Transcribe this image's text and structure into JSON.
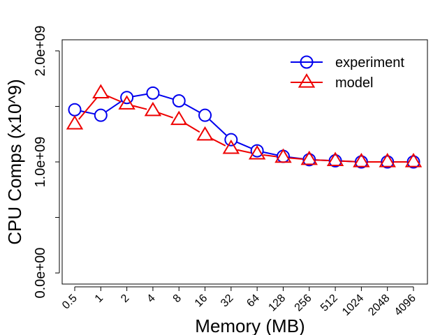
{
  "chart_data": {
    "type": "line",
    "xlabel": "Memory (MB)",
    "ylabel": "CPU Comps (x10^9)",
    "categories": [
      "0.5",
      "1",
      "2",
      "4",
      "8",
      "16",
      "32",
      "64",
      "128",
      "256",
      "512",
      "1024",
      "2048",
      "4096"
    ],
    "ylim": [
      -0.1,
      2.1
    ],
    "y_ticks": [
      0,
      0.5,
      1.0,
      1.5,
      2.0
    ],
    "y_tick_labels": [
      "0.0e+00",
      "",
      "1.0e+09",
      "",
      "2.0e+09"
    ],
    "grid": false,
    "legend_position": "top-right",
    "series": [
      {
        "name": "experiment",
        "color": "#0000ee",
        "marker": "circle",
        "values": [
          1.47,
          1.42,
          1.58,
          1.62,
          1.55,
          1.42,
          1.2,
          1.1,
          1.05,
          1.02,
          1.01,
          1.0,
          1.0,
          1.0
        ]
      },
      {
        "name": "model",
        "color": "#ee0000",
        "marker": "triangle",
        "values": [
          1.34,
          1.62,
          1.52,
          1.46,
          1.38,
          1.24,
          1.12,
          1.07,
          1.04,
          1.02,
          1.01,
          1.0,
          1.0,
          1.0
        ]
      }
    ]
  }
}
